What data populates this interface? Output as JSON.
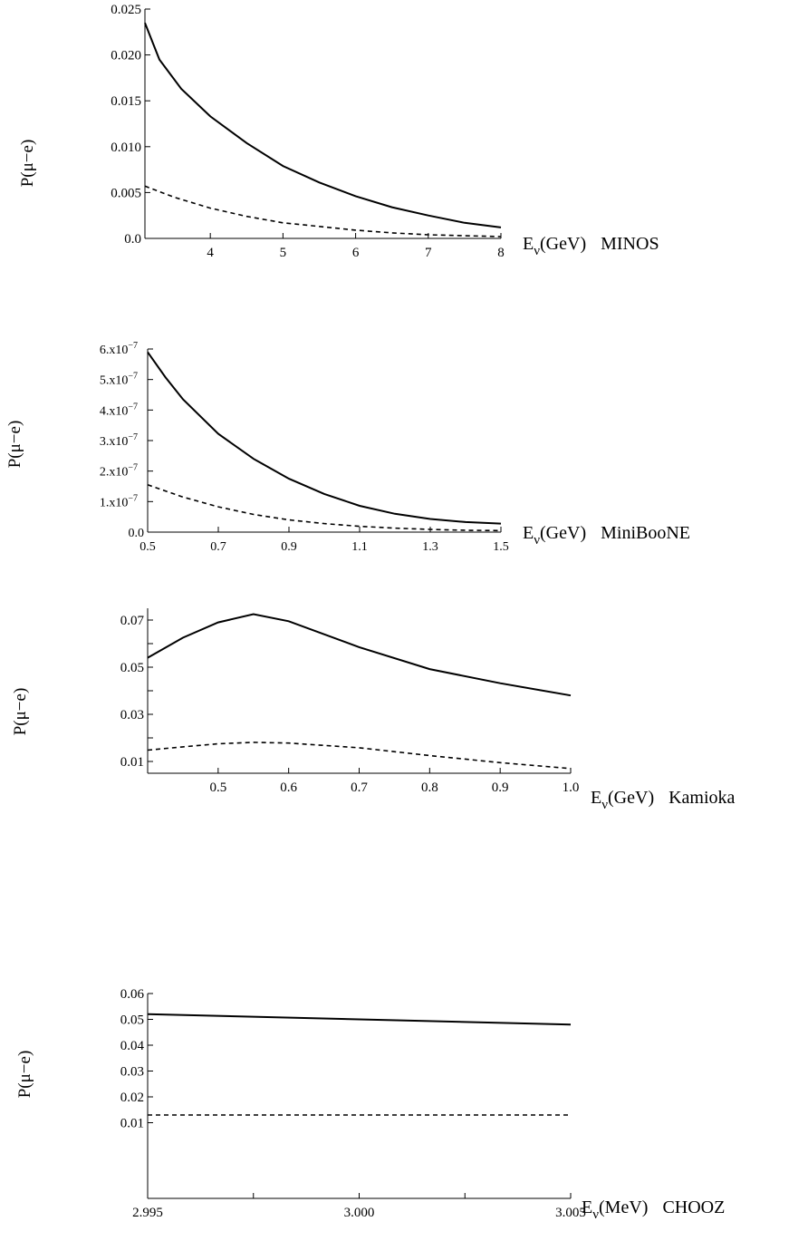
{
  "chart_data": [
    {
      "type": "line",
      "experiment": "MINOS",
      "ylabel": "P(μ−e)",
      "xlabel": {
        "base": "E",
        "sub": "ν",
        "rest": "(GeV)",
        "tag": "MINOS"
      },
      "xlim": [
        3.1,
        8
      ],
      "ylim": [
        0,
        0.025
      ],
      "xticks": [
        4,
        5,
        6,
        7,
        8
      ],
      "xtick_labels": [
        "4",
        "5",
        "6",
        "7",
        "8"
      ],
      "yticks": [
        0,
        0.005,
        0.01,
        0.015,
        0.02,
        0.025
      ],
      "ytick_labels": [
        "0.0",
        "0.005",
        "0.010",
        "0.015",
        "0.020",
        "0.025"
      ],
      "series": [
        {
          "style": "solid",
          "points": [
            [
              3.1,
              0.0235
            ],
            [
              3.3,
              0.0195
            ],
            [
              3.6,
              0.0163
            ],
            [
              4,
              0.0133
            ],
            [
              4.5,
              0.0104
            ],
            [
              5,
              0.0079
            ],
            [
              5.5,
              0.0061
            ],
            [
              6,
              0.0046
            ],
            [
              6.5,
              0.0034
            ],
            [
              7,
              0.0025
            ],
            [
              7.5,
              0.0017
            ],
            [
              8,
              0.0012
            ]
          ]
        },
        {
          "style": "dashed",
          "points": [
            [
              3.1,
              0.0057
            ],
            [
              3.5,
              0.0045
            ],
            [
              4,
              0.0033
            ],
            [
              4.5,
              0.0024
            ],
            [
              5,
              0.0017
            ],
            [
              5.5,
              0.0013
            ],
            [
              6,
              0.0009
            ],
            [
              6.5,
              0.0006
            ],
            [
              7,
              0.0004
            ],
            [
              7.5,
              0.0003
            ],
            [
              8,
              0.0002
            ]
          ]
        }
      ]
    },
    {
      "type": "line",
      "experiment": "MiniBooNE",
      "ylabel": "P(μ−e)",
      "xlabel": {
        "base": "E",
        "sub": "ν",
        "rest": "(GeV)",
        "tag": "MiniBooNE"
      },
      "xlim": [
        0.5,
        1.5
      ],
      "ylim": [
        0,
        6e-07
      ],
      "xticks": [
        0.5,
        0.7,
        0.9,
        1.1,
        1.3,
        1.5
      ],
      "xtick_labels": [
        "0.5",
        "0.7",
        "0.9",
        "1.1",
        "1.3",
        "1.5"
      ],
      "yticks": [
        0,
        1e-07,
        2e-07,
        3e-07,
        4e-07,
        5e-07,
        6e-07
      ],
      "ytick_labels": [
        "0.0",
        "1.x10",
        "2.x10",
        "3.x10",
        "4.x10",
        "5.x10",
        "6.x10"
      ],
      "ytick_exponent": "−7",
      "series": [
        {
          "style": "solid",
          "points": [
            [
              0.5,
              5.9e-07
            ],
            [
              0.55,
              5.08e-07
            ],
            [
              0.6,
              4.35e-07
            ],
            [
              0.7,
              3.22e-07
            ],
            [
              0.8,
              2.4e-07
            ],
            [
              0.9,
              1.75e-07
            ],
            [
              1.0,
              1.25e-07
            ],
            [
              1.1,
              8.6e-08
            ],
            [
              1.2,
              6e-08
            ],
            [
              1.3,
              4.3e-08
            ],
            [
              1.4,
              3.3e-08
            ],
            [
              1.5,
              2.8e-08
            ]
          ]
        },
        {
          "style": "dashed",
          "points": [
            [
              0.5,
              1.55e-07
            ],
            [
              0.6,
              1.15e-07
            ],
            [
              0.7,
              8.3e-08
            ],
            [
              0.8,
              5.8e-08
            ],
            [
              0.9,
              4e-08
            ],
            [
              1.0,
              2.8e-08
            ],
            [
              1.1,
              1.9e-08
            ],
            [
              1.2,
              1.3e-08
            ],
            [
              1.3,
              9e-09
            ],
            [
              1.4,
              6e-09
            ],
            [
              1.5,
              5e-09
            ]
          ]
        }
      ]
    },
    {
      "type": "line",
      "experiment": "Kamioka",
      "ylabel": "P(μ−e)",
      "xlabel": {
        "base": "E",
        "sub": "ν",
        "rest": "(GeV)",
        "tag": "Kamioka"
      },
      "xlim": [
        0.4,
        1.0
      ],
      "ylim": [
        0,
        0.075
      ],
      "xticks": [
        0.5,
        0.6,
        0.7,
        0.8,
        0.9,
        1.0
      ],
      "xtick_labels": [
        "0.5",
        "0.6",
        "0.7",
        "0.8",
        "0.9",
        "1.0"
      ],
      "yticks": [
        0.01,
        0.03,
        0.05,
        0.07
      ],
      "ytick_labels": [
        "0.01",
        "0.03",
        "0.05",
        "0.07"
      ],
      "yticks_minor": [
        0.02,
        0.04,
        0.06
      ],
      "series": [
        {
          "style": "solid",
          "points": [
            [
              0.4,
              0.054
            ],
            [
              0.45,
              0.0625
            ],
            [
              0.5,
              0.069
            ],
            [
              0.55,
              0.0725
            ],
            [
              0.6,
              0.0695
            ],
            [
              0.7,
              0.0585
            ],
            [
              0.8,
              0.0492
            ],
            [
              0.9,
              0.0432
            ],
            [
              1.0,
              0.038
            ]
          ]
        },
        {
          "style": "dashed",
          "points": [
            [
              0.4,
              0.0148
            ],
            [
              0.45,
              0.0162
            ],
            [
              0.5,
              0.0175
            ],
            [
              0.55,
              0.0181
            ],
            [
              0.6,
              0.0178
            ],
            [
              0.7,
              0.0158
            ],
            [
              0.8,
              0.0125
            ],
            [
              0.9,
              0.0095
            ],
            [
              1.0,
              0.007
            ]
          ]
        }
      ]
    },
    {
      "type": "line",
      "experiment": "CHOOZ",
      "ylabel": "P(μ−e)",
      "xlabel": {
        "base": "E",
        "sub": "ν",
        "rest": "(MeV)",
        "tag": "CHOOZ"
      },
      "xlim": [
        2.995,
        3.005
      ],
      "ylim": [
        0,
        0.06
      ],
      "xticks": [
        2.995,
        3.0,
        3.005
      ],
      "xtick_labels": [
        "2.995",
        "3.000",
        "3.005"
      ],
      "xticks_minor": [
        2.9975,
        3.0025
      ],
      "yticks": [
        0.01,
        0.02,
        0.03,
        0.04,
        0.05,
        0.06
      ],
      "ytick_labels": [
        "0.01",
        "0.02",
        "0.03",
        "0.04",
        "0.05",
        "0.06"
      ],
      "series": [
        {
          "style": "solid",
          "points": [
            [
              2.995,
              0.052
            ],
            [
              3.005,
              0.048
            ]
          ]
        },
        {
          "style": "dashed",
          "points": [
            [
              2.995,
              0.013
            ],
            [
              3.005,
              0.013
            ]
          ]
        }
      ]
    }
  ]
}
